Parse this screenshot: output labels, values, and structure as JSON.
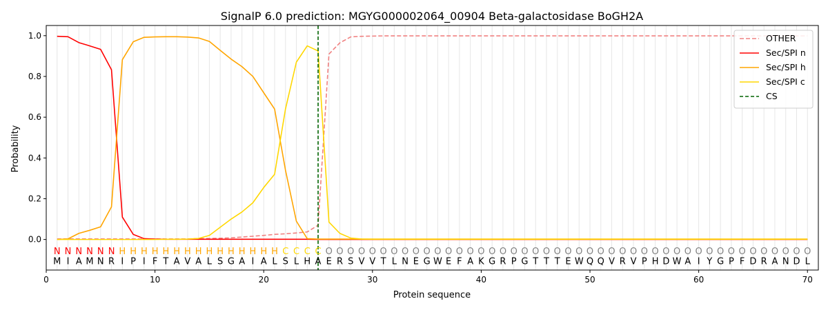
{
  "chart_data": {
    "type": "line",
    "title": "SignalP 6.0 prediction: MGYG000002064_00904 Beta-galactosidase BoGH2A",
    "xlabel": "Protein sequence",
    "ylabel": "Probability",
    "xlim": [
      0,
      71
    ],
    "ylim": [
      -0.15,
      1.05
    ],
    "xticks": [
      0,
      10,
      20,
      30,
      40,
      50,
      60,
      70
    ],
    "yticks": [
      0.0,
      0.2,
      0.4,
      0.6,
      0.8,
      1.0
    ],
    "grid": "vertical lines at each residue",
    "legend_position": "top-right",
    "sequence": [
      "M",
      "I",
      "A",
      "M",
      "N",
      "R",
      "I",
      "P",
      "I",
      "F",
      "T",
      "A",
      "V",
      "A",
      "L",
      "S",
      "G",
      "A",
      "I",
      "A",
      "L",
      "S",
      "L",
      "H",
      "A",
      "E",
      "R",
      "S",
      "V",
      "V",
      "T",
      "L",
      "N",
      "E",
      "G",
      "W",
      "E",
      "F",
      "A",
      "K",
      "G",
      "R",
      "P",
      "G",
      "T",
      "T",
      "T",
      "E",
      "W",
      "Q",
      "Q",
      "V",
      "R",
      "V",
      "P",
      "H",
      "D",
      "W",
      "A",
      "I",
      "Y",
      "G",
      "P",
      "F",
      "D",
      "R",
      "A",
      "N",
      "D",
      "L"
    ],
    "labels": [
      "N",
      "N",
      "N",
      "N",
      "N",
      "N",
      "H",
      "H",
      "H",
      "H",
      "H",
      "H",
      "H",
      "H",
      "H",
      "H",
      "H",
      "H",
      "H",
      "H",
      "H",
      "C",
      "C",
      "C",
      "C",
      "O",
      "O",
      "O",
      "O",
      "O",
      "O",
      "O",
      "O",
      "O",
      "O",
      "O",
      "O",
      "O",
      "O",
      "O",
      "O",
      "O",
      "O",
      "O",
      "O",
      "O",
      "O",
      "O",
      "O",
      "O",
      "O",
      "O",
      "O",
      "O",
      "O",
      "O",
      "O",
      "O",
      "O",
      "O",
      "O",
      "O",
      "O",
      "O",
      "O",
      "O",
      "O",
      "O",
      "O",
      "O"
    ],
    "label_colors": {
      "N": "#ff0000",
      "H": "#ffa500",
      "C": "#ffd700",
      "O": "#808080"
    },
    "cs_position": 25,
    "series": [
      {
        "name": "OTHER",
        "color": "#f08080",
        "dash": true,
        "values": [
          0.003,
          0.003,
          0.003,
          0.003,
          0.003,
          0.003,
          0.003,
          0.003,
          0.003,
          0.003,
          0.003,
          0.003,
          0.003,
          0.004,
          0.005,
          0.006,
          0.008,
          0.012,
          0.016,
          0.02,
          0.025,
          0.028,
          0.032,
          0.037,
          0.07,
          0.91,
          0.965,
          0.994,
          0.997,
          0.998,
          0.999,
          0.999,
          0.999,
          0.999,
          0.999,
          0.999,
          0.999,
          0.999,
          0.999,
          0.999,
          0.999,
          0.999,
          0.999,
          0.999,
          0.999,
          0.999,
          0.999,
          0.999,
          0.999,
          0.999,
          0.999,
          0.999,
          0.999,
          0.999,
          0.999,
          0.999,
          0.999,
          0.999,
          0.999,
          0.999,
          0.999,
          0.999,
          0.999,
          0.999,
          0.999,
          0.999,
          0.999,
          0.999,
          0.999,
          0.999
        ]
      },
      {
        "name": "Sec/SPI n",
        "color": "#ff0000",
        "dash": false,
        "values": [
          0.997,
          0.995,
          0.966,
          0.95,
          0.933,
          0.833,
          0.11,
          0.025,
          0.004,
          0.002,
          0.001,
          0.001,
          0.001,
          0.001,
          0.001,
          0.001,
          0.001,
          0.001,
          0.001,
          0.001,
          0.001,
          0.001,
          0.001,
          0.001,
          0.0,
          0.0,
          0.0,
          0.0,
          0.0,
          0.0,
          0.0,
          0.0,
          0.0,
          0.0,
          0.0,
          0.0,
          0.0,
          0.0,
          0.0,
          0.0,
          0.0,
          0.0,
          0.0,
          0.0,
          0.0,
          0.0,
          0.0,
          0.0,
          0.0,
          0.0,
          0.0,
          0.0,
          0.0,
          0.0,
          0.0,
          0.0,
          0.0,
          0.0,
          0.0,
          0.0,
          0.0,
          0.0,
          0.0,
          0.0,
          0.0,
          0.0,
          0.0,
          0.0,
          0.0,
          0.0
        ]
      },
      {
        "name": "Sec/SPI h",
        "color": "#ffa500",
        "dash": false,
        "values": [
          0.0,
          0.003,
          0.03,
          0.045,
          0.062,
          0.16,
          0.882,
          0.97,
          0.992,
          0.994,
          0.995,
          0.995,
          0.993,
          0.989,
          0.972,
          0.928,
          0.885,
          0.848,
          0.8,
          0.72,
          0.64,
          0.34,
          0.09,
          0.004,
          0.002,
          0.002,
          0.002,
          0.002,
          0.002,
          0.002,
          0.002,
          0.002,
          0.002,
          0.002,
          0.002,
          0.002,
          0.002,
          0.002,
          0.002,
          0.002,
          0.002,
          0.002,
          0.002,
          0.002,
          0.002,
          0.002,
          0.002,
          0.002,
          0.002,
          0.002,
          0.002,
          0.002,
          0.002,
          0.002,
          0.002,
          0.002,
          0.002,
          0.002,
          0.002,
          0.002,
          0.002,
          0.002,
          0.002,
          0.002,
          0.002,
          0.002,
          0.002,
          0.002,
          0.002,
          0.002
        ]
      },
      {
        "name": "Sec/SPI c",
        "color": "#ffd700",
        "dash": false,
        "values": [
          0.0,
          0.0,
          0.0,
          0.0,
          0.0,
          0.0,
          0.0,
          0.0,
          0.0,
          0.0,
          0.001,
          0.001,
          0.002,
          0.005,
          0.02,
          0.06,
          0.1,
          0.135,
          0.18,
          0.255,
          0.32,
          0.64,
          0.87,
          0.95,
          0.925,
          0.085,
          0.03,
          0.007,
          0.002,
          0.001,
          0.001,
          0.001,
          0.001,
          0.001,
          0.001,
          0.001,
          0.001,
          0.001,
          0.001,
          0.001,
          0.001,
          0.001,
          0.001,
          0.001,
          0.001,
          0.001,
          0.001,
          0.001,
          0.001,
          0.001,
          0.001,
          0.001,
          0.001,
          0.001,
          0.001,
          0.001,
          0.001,
          0.001,
          0.001,
          0.001,
          0.001,
          0.001,
          0.001,
          0.001,
          0.001,
          0.001,
          0.001,
          0.001,
          0.001,
          0.001
        ]
      }
    ],
    "cs_legend": {
      "name": "CS",
      "color": "#006400"
    }
  }
}
